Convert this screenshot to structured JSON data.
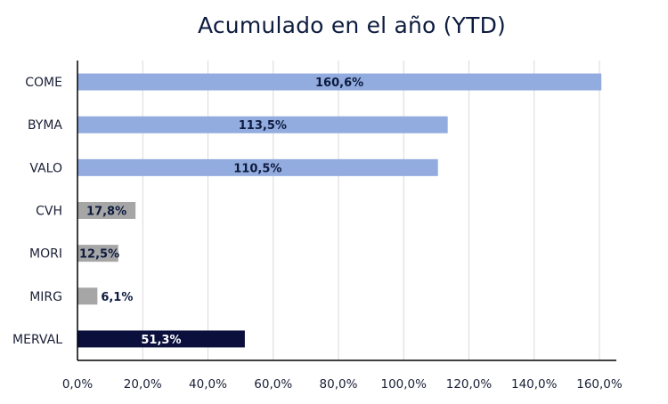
{
  "chart_data": {
    "type": "bar",
    "orientation": "horizontal",
    "title": "Acumulado en el año (YTD)",
    "categories": [
      "COME",
      "BYMA",
      "VALO",
      "CVH",
      "MORI",
      "MIRG",
      "MERVAL"
    ],
    "values": [
      160.6,
      113.5,
      110.5,
      17.8,
      12.5,
      6.1,
      51.3
    ],
    "data_labels": [
      "160,6%",
      "113,5%",
      "110,5%",
      "17,8%",
      "12,5%",
      "6,1%",
      "51,3%"
    ],
    "bar_colors": [
      "#93acdf",
      "#93acdf",
      "#93acdf",
      "#a6a6a6",
      "#a6a6a6",
      "#a6a6a6",
      "#0a0f3c"
    ],
    "label_colors": [
      "#0d1b3e",
      "#0d1b3e",
      "#0d1b3e",
      "#0d1b3e",
      "#0d1b3e",
      "#0d1b3e",
      "#ffffff"
    ],
    "xlim": [
      0,
      160
    ],
    "x_ticks": [
      0,
      20,
      40,
      60,
      80,
      100,
      120,
      140,
      160
    ],
    "x_tick_labels": [
      "0,0%",
      "20,0%",
      "40,0%",
      "60,0%",
      "80,0%",
      "100,0%",
      "120,0%",
      "140,0%",
      "160,0%"
    ],
    "grid": "vertical",
    "legend": "none"
  }
}
